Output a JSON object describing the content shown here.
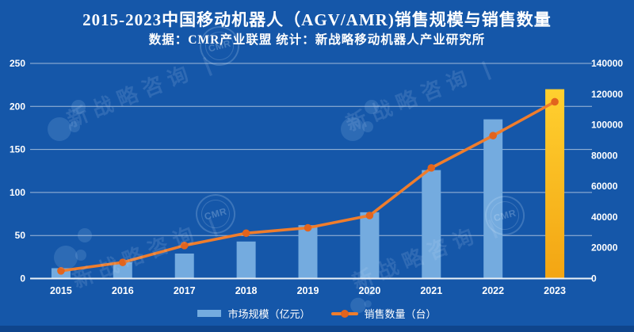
{
  "header": {
    "title": "2015-2023中国移动机器人（AGV/AMR)销售规模与销售数量",
    "subtitle": "数据：CMR产业联盟 统计：新战略移动机器人产业研究所"
  },
  "chart_data": {
    "type": "bar",
    "combo": "bar + line with dual y-axes",
    "title": "2015-2023中国移动机器人（AGV/AMR)销售规模与销售数量",
    "categories": [
      "2015",
      "2016",
      "2017",
      "2018",
      "2019",
      "2020",
      "2021",
      "2022",
      "2023"
    ],
    "series": [
      {
        "name": "市场规模（亿元）",
        "type": "bar",
        "y_axis": "left",
        "values": [
          12,
          19,
          29,
          43,
          62,
          77,
          126,
          185,
          220
        ]
      },
      {
        "name": "销售数量（台）",
        "type": "line",
        "y_axis": "right",
        "values": [
          5000,
          10500,
          21500,
          29500,
          33000,
          41000,
          72000,
          93000,
          115000
        ]
      }
    ],
    "left_axis": {
      "min": 0,
      "max": 250,
      "ticks": [
        0,
        50,
        100,
        150,
        200,
        250
      ]
    },
    "right_axis": {
      "min": 0,
      "max": 140000,
      "ticks": [
        0,
        20000,
        40000,
        60000,
        80000,
        100000,
        120000,
        140000
      ]
    },
    "grid": true,
    "legend_position": "bottom",
    "highlight": {
      "category": "2023",
      "note": "2023 bar rendered in gold, all other bars light blue"
    }
  },
  "legend": {
    "bar_label": "市场规模（亿元）",
    "line_label": "销售数量（台）"
  },
  "watermark": {
    "brand": "新战略咨询 |",
    "stamp": "CMR"
  },
  "colors": {
    "background": "#1557a9",
    "bar": "#74abdf",
    "bar_highlight_top": "#ffd02f",
    "bar_highlight_bottom": "#f3a513",
    "line": "#ef7d2c",
    "marker": "#e2641d",
    "grid": "#cfdcea",
    "baseline": "#eaf1f8",
    "text": "#ffffff"
  }
}
